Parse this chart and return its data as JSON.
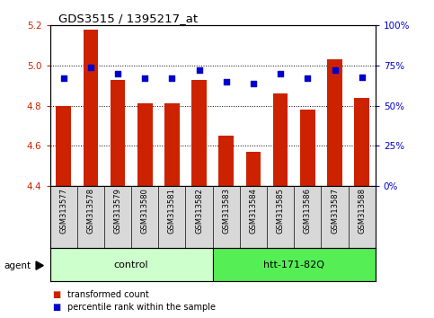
{
  "title": "GDS3515 / 1395217_at",
  "samples": [
    "GSM313577",
    "GSM313578",
    "GSM313579",
    "GSM313580",
    "GSM313581",
    "GSM313582",
    "GSM313583",
    "GSM313584",
    "GSM313585",
    "GSM313586",
    "GSM313587",
    "GSM313588"
  ],
  "red_values": [
    4.8,
    5.18,
    4.93,
    4.81,
    4.81,
    4.93,
    4.65,
    4.57,
    4.86,
    4.78,
    5.03,
    4.84
  ],
  "blue_values": [
    67,
    74,
    70,
    67,
    67,
    72,
    65,
    64,
    70,
    67,
    72,
    68
  ],
  "ylim_left": [
    4.4,
    5.2
  ],
  "ylim_right": [
    0,
    100
  ],
  "yticks_left": [
    4.4,
    4.6,
    4.8,
    5.0,
    5.2
  ],
  "yticks_right": [
    0,
    25,
    50,
    75,
    100
  ],
  "ytick_labels_right": [
    "0%",
    "25%",
    "50%",
    "75%",
    "100%"
  ],
  "groups": [
    {
      "label": "control",
      "start": 0,
      "end": 6,
      "color": "#ccffcc"
    },
    {
      "label": "htt-171-82Q",
      "start": 6,
      "end": 12,
      "color": "#55ee55"
    }
  ],
  "agent_label": "agent",
  "bar_color": "#cc2200",
  "dot_color": "#0000cc",
  "tick_label_color_left": "#cc2200",
  "tick_label_color_right": "#0000cc",
  "legend_red": "transformed count",
  "legend_blue": "percentile rank within the sample",
  "bar_width": 0.55,
  "grid_yticks": [
    4.6,
    4.8,
    5.0
  ]
}
